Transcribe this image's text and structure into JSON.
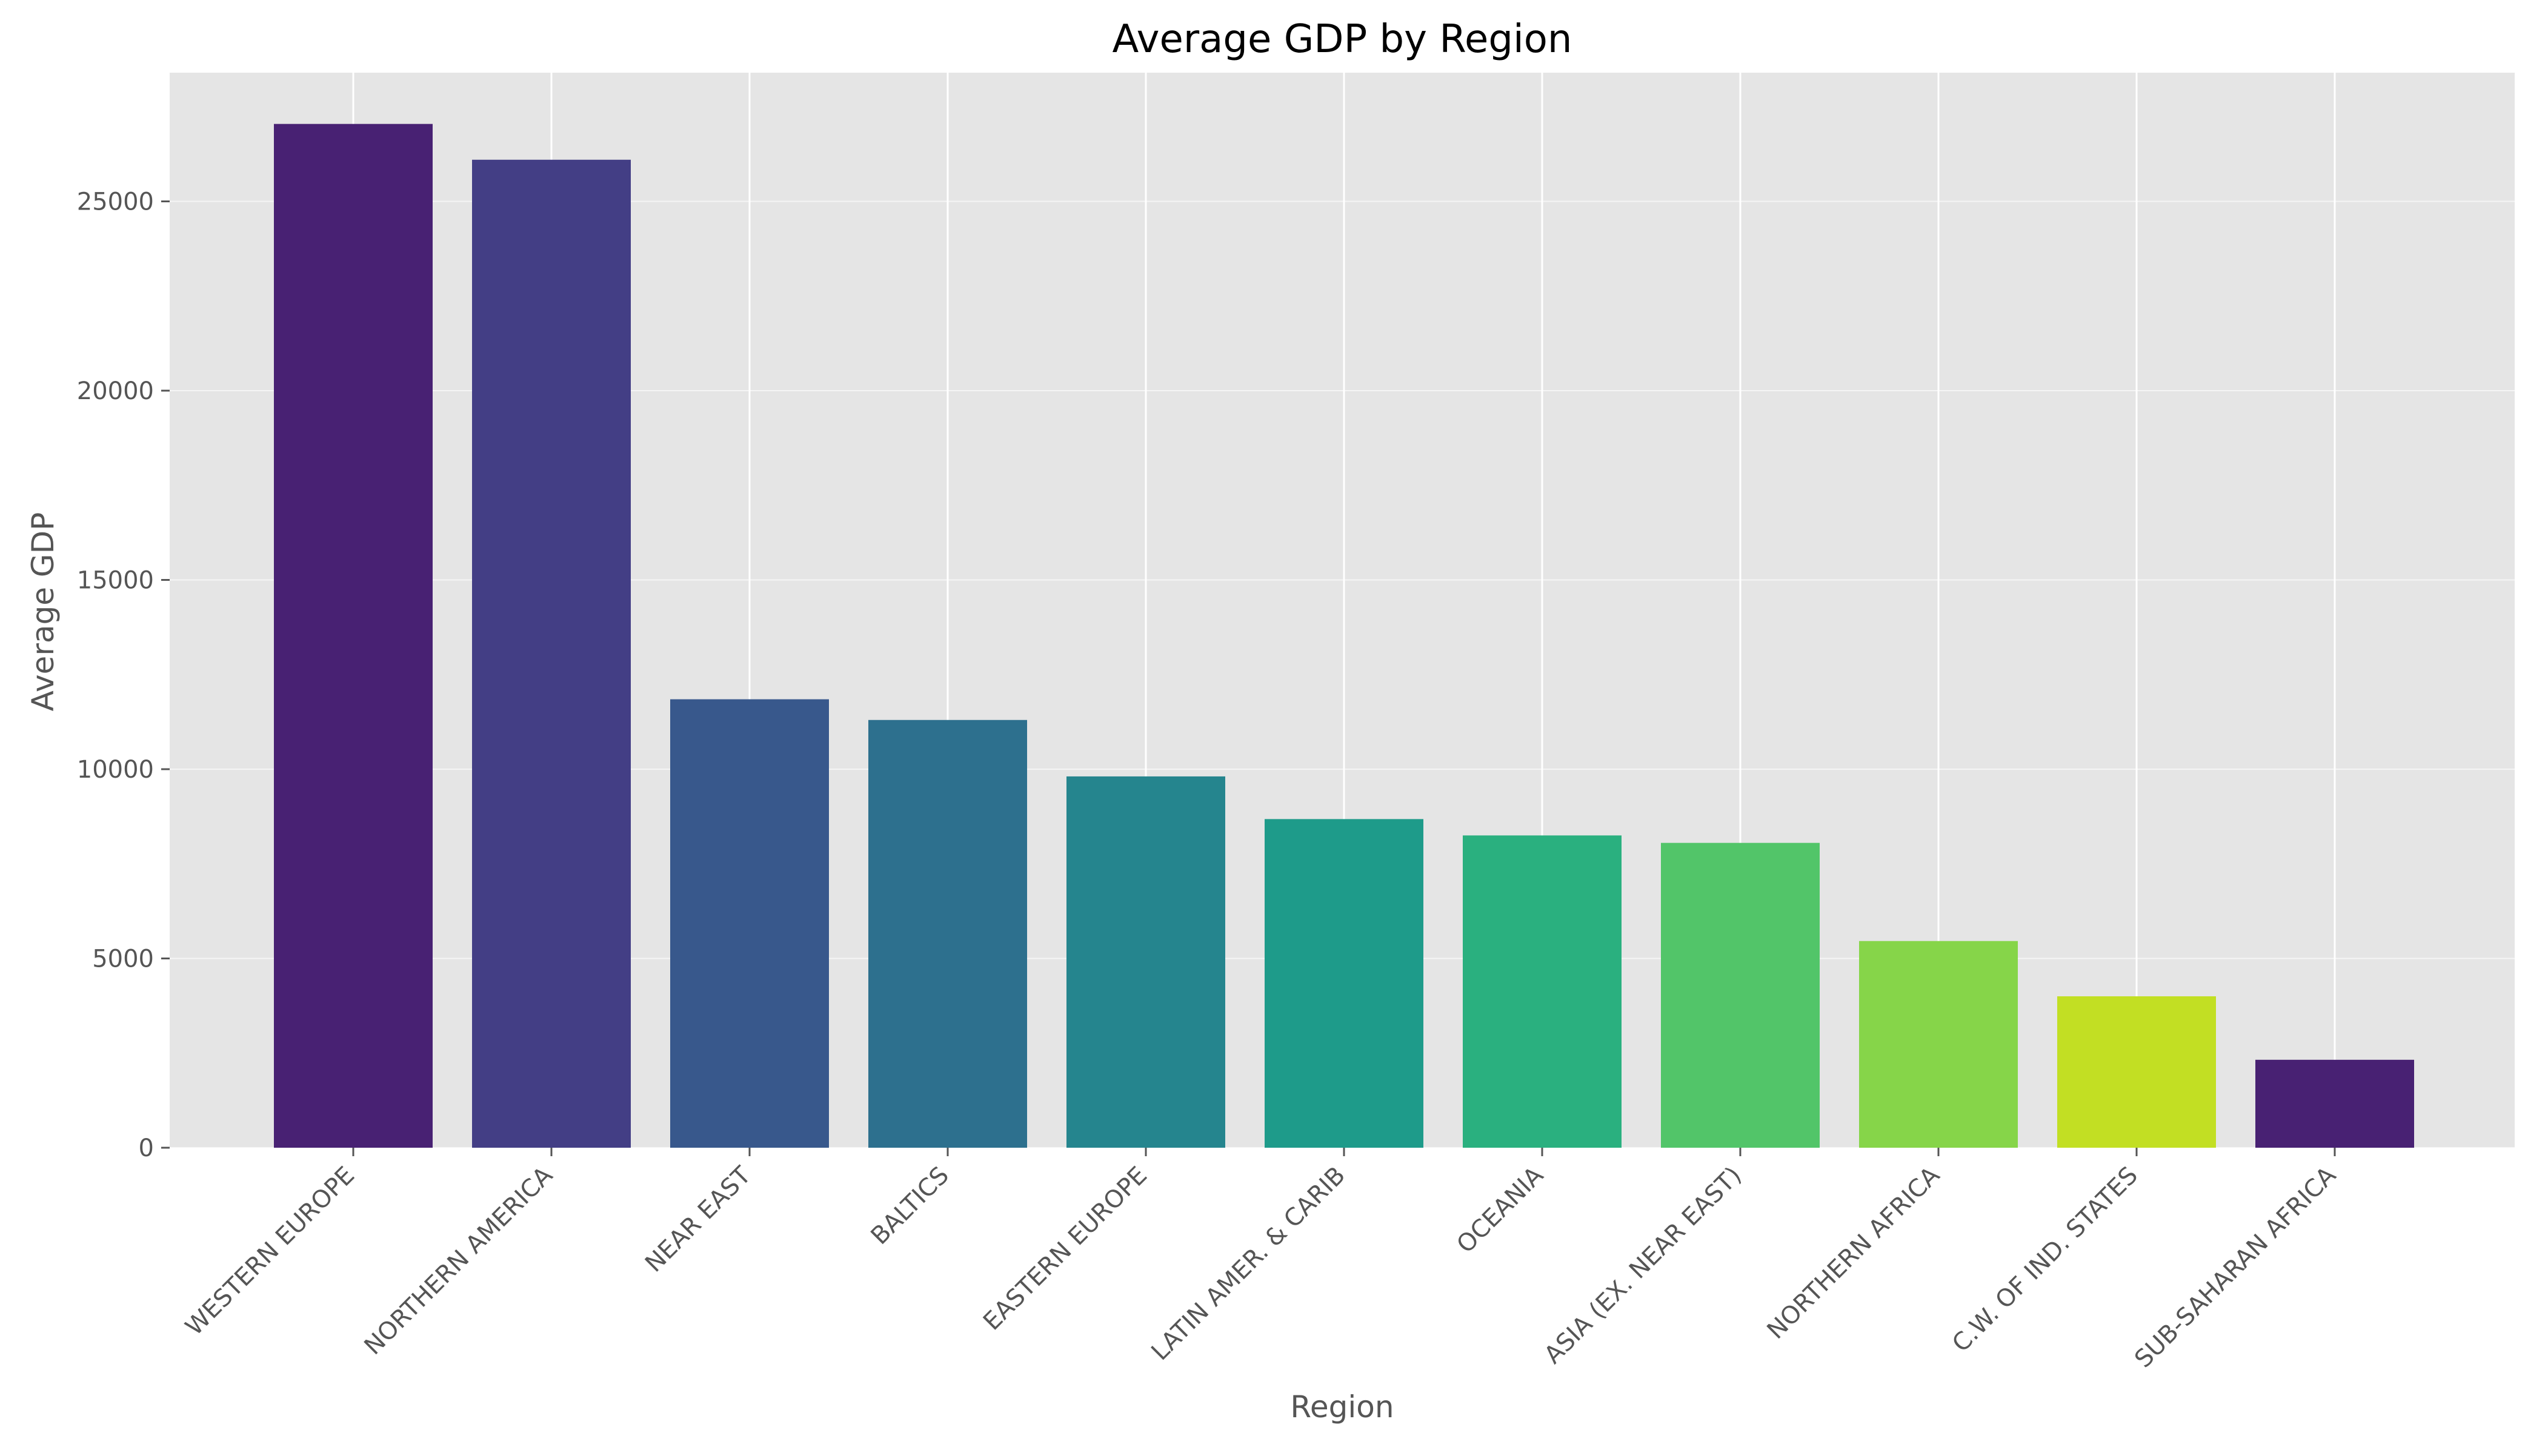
{
  "chart_data": {
    "type": "bar",
    "title": "Average GDP by Region",
    "xlabel": "Region",
    "ylabel": "Average GDP",
    "categories": [
      "WESTERN EUROPE",
      "NORTHERN AMERICA",
      "NEAR EAST",
      "BALTICS",
      "EASTERN EUROPE",
      "LATIN AMER. & CARIB",
      "OCEANIA",
      "ASIA (EX. NEAR EAST)",
      "NORTHERN AFRICA",
      "C.W. OF IND. STATES",
      "SUB-SAHARAN AFRICA"
    ],
    "values": [
      27046,
      26100,
      11847,
      11300,
      9809,
      8682,
      8250,
      8053,
      5460,
      4000,
      2323
    ],
    "colors": [
      "#482173",
      "#433e85",
      "#38588c",
      "#2d708e",
      "#25858e",
      "#1e9b8a",
      "#2ab07f",
      "#52c569",
      "#86d549",
      "#c2df23",
      "#482173"
    ],
    "ylim": [
      0,
      28400
    ],
    "yticks": [
      0,
      5000,
      10000,
      15000,
      20000,
      25000
    ],
    "grid": true,
    "legend": "none",
    "style": {
      "axes_background": "#e5e5e5",
      "grid_color": "#ffffff",
      "title_color": "#000000",
      "label_color": "#555555"
    }
  }
}
